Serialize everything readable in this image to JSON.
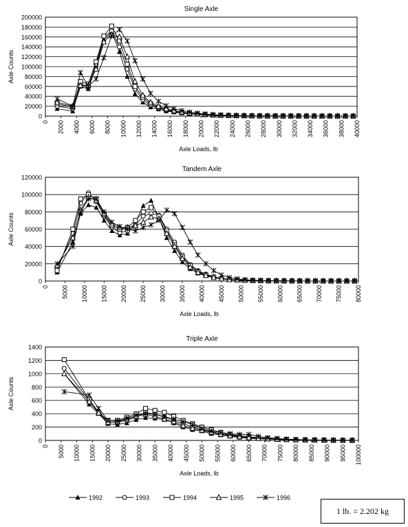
{
  "legend": [
    "1992",
    "1993",
    "1994",
    "1995",
    "1996"
  ],
  "note": "1 lb. = 2.202 kg",
  "chart_data": [
    {
      "type": "line",
      "title": "Single Axle",
      "xlabel": "Axle Loads, lb",
      "ylabel": "Axle Counts",
      "xlim": [
        0,
        40000
      ],
      "ylim": [
        0,
        200000
      ],
      "xticks": [
        "0",
        "2000",
        "4000",
        "6000",
        "8000",
        "10000",
        "12000",
        "14000",
        "16000",
        "18000",
        "20000",
        "22000",
        "24000",
        "26000",
        "28000",
        "30000",
        "32000",
        "34000",
        "36000",
        "38000",
        "40000"
      ],
      "yticks": [
        "0",
        "20000",
        "40000",
        "60000",
        "80000",
        "100000",
        "120000",
        "140000",
        "160000",
        "180000",
        "200000"
      ],
      "xtick_rotate": true,
      "x": [
        1500,
        3500,
        4500,
        5500,
        6500,
        7500,
        8500,
        9500,
        10500,
        11500,
        12500,
        13500,
        14500,
        15500,
        16500,
        17500,
        18500,
        19500,
        20500,
        21500,
        22500,
        23500,
        24500,
        25500,
        26500,
        27500,
        28500,
        29500,
        30500,
        31500,
        32500,
        33500,
        34500,
        35500,
        36500,
        37500,
        38500,
        39500,
        40500
      ],
      "series": [
        {
          "name": "1992",
          "values": [
            15000,
            10000,
            60000,
            55000,
            100000,
            155000,
            170000,
            130000,
            80000,
            45000,
            28000,
            18000,
            14000,
            10000,
            8000,
            6000,
            4500,
            3500,
            2500,
            1800,
            1200,
            1000,
            800,
            600,
            500,
            400,
            300,
            200,
            150,
            100,
            100,
            80,
            50,
            40,
            30,
            20,
            20,
            10,
            10
          ]
        },
        {
          "name": "1993",
          "values": [
            20000,
            15000,
            65000,
            60000,
            105000,
            160000,
            172000,
            140000,
            95000,
            55000,
            33000,
            22000,
            16000,
            12000,
            9000,
            7000,
            5000,
            4000,
            3000,
            2000,
            1500,
            1200,
            900,
            700,
            500,
            400,
            300,
            200,
            150,
            120,
            100,
            80,
            60,
            40,
            30,
            20,
            20,
            10,
            10
          ]
        },
        {
          "name": "1994",
          "values": [
            25000,
            18000,
            70000,
            65000,
            110000,
            162000,
            182000,
            152000,
            105000,
            60000,
            38000,
            25000,
            18000,
            13000,
            10000,
            7500,
            5500,
            4200,
            3000,
            2200,
            1600,
            1200,
            900,
            700,
            550,
            400,
            300,
            250,
            180,
            130,
            100,
            80,
            60,
            40,
            30,
            25,
            20,
            10,
            10
          ]
        },
        {
          "name": "1995",
          "values": [
            28000,
            20000,
            62000,
            62000,
            95000,
            150000,
            165000,
            160000,
            120000,
            70000,
            42000,
            28000,
            20000,
            15000,
            11000,
            8000,
            6000,
            4500,
            3300,
            2400,
            1800,
            1300,
            1000,
            800,
            600,
            450,
            350,
            250,
            200,
            150,
            110,
            90,
            70,
            50,
            35,
            25,
            20,
            15,
            10
          ]
        },
        {
          "name": "1996",
          "values": [
            35000,
            20000,
            88000,
            60000,
            75000,
            118000,
            162000,
            175000,
            152000,
            112000,
            75000,
            46000,
            30000,
            21000,
            15000,
            11000,
            8000,
            6000,
            4200,
            3000,
            2200,
            1600,
            1200,
            900,
            700,
            500,
            400,
            300,
            220,
            160,
            120,
            90,
            70,
            50,
            40,
            30,
            20,
            15,
            10
          ]
        }
      ]
    },
    {
      "type": "line",
      "title": "Tandem Axle",
      "xlabel": "Axle Loads, lb",
      "ylabel": "Axle Counts",
      "xlim": [
        0,
        80000
      ],
      "ylim": [
        0,
        120000
      ],
      "xticks": [
        "0",
        "5000",
        "10000",
        "15000",
        "20000",
        "25000",
        "30000",
        "35000",
        "40000",
        "45000",
        "50000",
        "55000",
        "60000",
        "65000",
        "70000",
        "75000",
        "80000"
      ],
      "yticks": [
        "0",
        "20000",
        "40000",
        "60000",
        "80000",
        "100000",
        "120000"
      ],
      "xtick_rotate": true,
      "x": [
        3000,
        7000,
        9000,
        11000,
        13000,
        15000,
        17000,
        19000,
        21000,
        23000,
        25000,
        27000,
        29000,
        31000,
        33000,
        35000,
        37000,
        39000,
        41000,
        43000,
        45000,
        47000,
        49000,
        51000,
        53000,
        55000,
        57000,
        59000,
        61000,
        63000,
        65000,
        67000,
        69000,
        71000,
        73000,
        75000,
        77000,
        79000,
        81000
      ],
      "series": [
        {
          "name": "1992",
          "values": [
            10000,
            45000,
            78000,
            88000,
            85000,
            70000,
            58000,
            53000,
            55000,
            68000,
            87000,
            93000,
            73000,
            50000,
            35000,
            22000,
            14000,
            9000,
            6000,
            4000,
            2500,
            1500,
            1000,
            700,
            500,
            300,
            200,
            150,
            100,
            80,
            60,
            40,
            30,
            20,
            15,
            10,
            10,
            5,
            5
          ]
        },
        {
          "name": "1993",
          "values": [
            15000,
            55000,
            90000,
            102000,
            92000,
            75000,
            62000,
            56000,
            58000,
            65000,
            75000,
            78000,
            76000,
            60000,
            45000,
            30000,
            19000,
            12000,
            8000,
            5000,
            3000,
            2000,
            1300,
            900,
            600,
            400,
            300,
            200,
            150,
            100,
            80,
            60,
            40,
            30,
            20,
            15,
            10,
            5,
            5
          ]
        },
        {
          "name": "1994",
          "values": [
            12000,
            60000,
            95000,
            100000,
            95000,
            77000,
            64000,
            60000,
            62000,
            70000,
            80000,
            85000,
            75000,
            58000,
            42000,
            28000,
            18000,
            11000,
            7000,
            4500,
            2800,
            1800,
            1200,
            800,
            550,
            380,
            260,
            180,
            130,
            90,
            70,
            50,
            35,
            25,
            18,
            12,
            8,
            5,
            5
          ]
        },
        {
          "name": "1995",
          "values": [
            18000,
            50000,
            82000,
            97000,
            93000,
            78000,
            66000,
            62000,
            62000,
            64000,
            68000,
            74000,
            72000,
            55000,
            40000,
            26000,
            16000,
            10000,
            6500,
            4000,
            2500,
            1600,
            1100,
            750,
            500,
            350,
            240,
            170,
            120,
            80,
            60,
            45,
            30,
            20,
            15,
            10,
            8,
            5,
            5
          ]
        },
        {
          "name": "1996",
          "values": [
            20000,
            40000,
            80000,
            95000,
            95000,
            80000,
            68000,
            63000,
            60000,
            58000,
            62000,
            65000,
            70000,
            82000,
            78000,
            62000,
            45000,
            30000,
            20000,
            12000,
            7000,
            4000,
            2500,
            1500,
            900,
            600,
            400,
            250,
            150,
            100,
            70,
            50,
            35,
            25,
            15,
            10,
            8,
            5,
            5
          ]
        }
      ]
    },
    {
      "type": "line",
      "title": "Triple Axle",
      "xlabel": "Axle Loads, lb",
      "ylabel": "Axle Counts",
      "xlim": [
        0,
        100000
      ],
      "ylim": [
        0,
        1400
      ],
      "xticks": [
        "0",
        "5000",
        "10000",
        "15000",
        "20000",
        "25000",
        "30000",
        "35000",
        "40000",
        "45000",
        "50000",
        "55000",
        "60000",
        "65000",
        "70000",
        "75000",
        "80000",
        "85000",
        "90000",
        "95000",
        "100000"
      ],
      "yticks": [
        "0",
        "200",
        "400",
        "600",
        "800",
        "1000",
        "1200",
        "1400"
      ],
      "xtick_rotate": true,
      "x": [
        6000,
        14000,
        17000,
        20000,
        23000,
        26000,
        29000,
        32000,
        35000,
        38000,
        41000,
        44000,
        47000,
        50000,
        53000,
        56000,
        59000,
        62000,
        65000,
        68000,
        71000,
        74000,
        77000,
        80000,
        83000,
        86000,
        89000,
        92000,
        95000,
        98000,
        101000
      ],
      "series": [
        {
          "name": "1992",
          "values": [
            1000,
            540,
            400,
            250,
            240,
            260,
            310,
            340,
            330,
            310,
            260,
            200,
            160,
            140,
            100,
            80,
            60,
            45,
            30,
            25,
            20,
            15,
            10,
            8,
            6,
            5,
            4,
            3,
            2,
            1,
            1
          ]
        },
        {
          "name": "1993",
          "values": [
            1080,
            600,
            430,
            280,
            270,
            300,
            350,
            420,
            390,
            350,
            300,
            250,
            200,
            160,
            130,
            100,
            80,
            60,
            45,
            35,
            25,
            18,
            12,
            9,
            7,
            5,
            4,
            3,
            2,
            1,
            1
          ]
        },
        {
          "name": "1994",
          "values": [
            1210,
            610,
            420,
            300,
            300,
            350,
            400,
            480,
            450,
            420,
            360,
            300,
            250,
            200,
            160,
            120,
            90,
            70,
            55,
            40,
            30,
            20,
            15,
            10,
            8,
            6,
            5,
            3,
            2,
            1,
            1
          ]
        },
        {
          "name": "1995",
          "values": [
            1000,
            580,
            410,
            270,
            280,
            320,
            360,
            390,
            360,
            320,
            280,
            220,
            180,
            150,
            120,
            90,
            70,
            55,
            40,
            30,
            22,
            16,
            11,
            8,
            6,
            5,
            4,
            3,
            2,
            1,
            1
          ]
        },
        {
          "name": "1996",
          "values": [
            730,
            680,
            480,
            300,
            290,
            330,
            380,
            400,
            390,
            360,
            320,
            280,
            240,
            180,
            140,
            120,
            100,
            90,
            90,
            60,
            40,
            30,
            20,
            15,
            10,
            8,
            6,
            4,
            3,
            2,
            1
          ]
        }
      ]
    }
  ]
}
